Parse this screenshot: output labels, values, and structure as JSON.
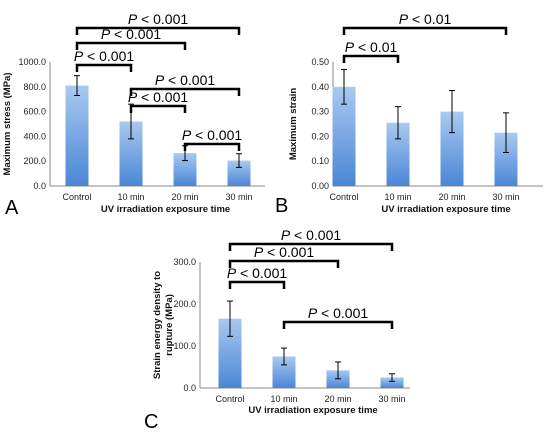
{
  "chart_data": [
    {
      "type": "bar",
      "panel_label": "A",
      "categories": [
        "Control",
        "10 min",
        "20 min",
        "30 min"
      ],
      "values": [
        810,
        520,
        265,
        205
      ],
      "errors": [
        80,
        140,
        60,
        55
      ],
      "xlabel": "UV irradiation exposure time",
      "ylabel": "Maximum stress (MPa)",
      "ylim": [
        0,
        1000
      ],
      "yticks": [
        "0.0",
        "200.0",
        "400.0",
        "600.0",
        "800.0",
        "1000.0"
      ],
      "grid": false,
      "significance": [
        {
          "from": 0,
          "to": 3,
          "label": "P < 0.001"
        },
        {
          "from": 0,
          "to": 2,
          "label": "P < 0.001"
        },
        {
          "from": 0,
          "to": 1,
          "label": "P < 0.001"
        },
        {
          "from": 1,
          "to": 3,
          "label": "P < 0.001"
        },
        {
          "from": 1,
          "to": 2,
          "label": "P < 0.001"
        },
        {
          "from": 2,
          "to": 3,
          "label": "P < 0.001"
        }
      ]
    },
    {
      "type": "bar",
      "panel_label": "B",
      "categories": [
        "Control",
        "10 min",
        "20 min",
        "30 min"
      ],
      "values": [
        0.4,
        0.255,
        0.3,
        0.215
      ],
      "errors": [
        0.07,
        0.065,
        0.085,
        0.08
      ],
      "xlabel": "UV irradiation exposure time",
      "ylabel": "Maximum strain",
      "ylim": [
        0,
        0.5
      ],
      "yticks": [
        "0.00",
        "0.10",
        "0.20",
        "0.30",
        "0.40",
        "0.50"
      ],
      "grid": false,
      "significance": [
        {
          "from": 0,
          "to": 3,
          "label": "P < 0.01"
        },
        {
          "from": 0,
          "to": 1,
          "label": "P < 0.01"
        }
      ]
    },
    {
      "type": "bar",
      "panel_label": "C",
      "categories": [
        "Control",
        "10 min",
        "20 min",
        "30 min"
      ],
      "values": [
        165,
        75,
        42,
        25
      ],
      "errors": [
        42,
        20,
        20,
        9
      ],
      "xlabel": "UV irradiation exposure time",
      "ylabel": "Strain energy density to rupture (MPa)",
      "ylim": [
        0,
        300
      ],
      "yticks": [
        "0.0",
        "100.0",
        "200.0",
        "300.0"
      ],
      "grid": false,
      "significance": [
        {
          "from": 0,
          "to": 3,
          "label": "P < 0.001"
        },
        {
          "from": 0,
          "to": 2,
          "label": "P < 0.001"
        },
        {
          "from": 0,
          "to": 1,
          "label": "P < 0.001"
        },
        {
          "from": 1,
          "to": 3,
          "label": "P < 0.001"
        }
      ]
    }
  ]
}
